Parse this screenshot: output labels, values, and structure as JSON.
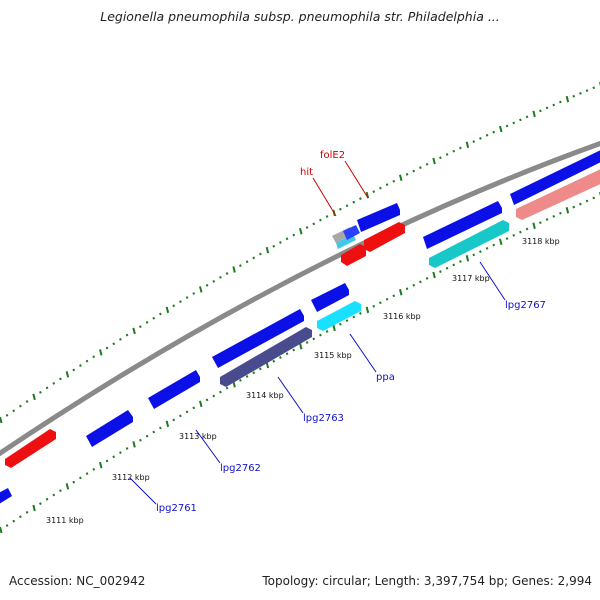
{
  "title": "Legionella pneumophila subsp. pneumophila str. Philadelphia ...",
  "footer": {
    "accession": "Accession: NC_002942",
    "stats": "Topology: circular; Length: 3,397,754 bp; Genes: 2,994"
  },
  "colors": {
    "backbone": "#8a8a8a",
    "ticks": "#1e7a1e",
    "gene_blue": "#0a10e6",
    "gene_red": "#ee1010",
    "gene_cyan": "#18c8c8",
    "gene_navy": "#4a4a8e",
    "gene_pink": "#ee8a8a",
    "label_blue": "#1010cc",
    "label_red": "#cc0000"
  },
  "ticks": [
    {
      "label": "3111 kbp"
    },
    {
      "label": "3112 kbp"
    },
    {
      "label": "3113 kbp"
    },
    {
      "label": "3114 kbp"
    },
    {
      "label": "3115 kbp"
    },
    {
      "label": "3116 kbp"
    },
    {
      "label": "3117 kbp"
    },
    {
      "label": "3118 kbp"
    }
  ],
  "gene_labels": [
    {
      "id": "lpg2761",
      "text": "lpg2761"
    },
    {
      "id": "lpg2762",
      "text": "lpg2762"
    },
    {
      "id": "lpg2763",
      "text": "lpg2763"
    },
    {
      "id": "ppa",
      "text": "ppa"
    },
    {
      "id": "lpg2767",
      "text": "lpg2767"
    },
    {
      "id": "hit",
      "text": "hit"
    },
    {
      "id": "folE2",
      "text": "folE2"
    }
  ]
}
